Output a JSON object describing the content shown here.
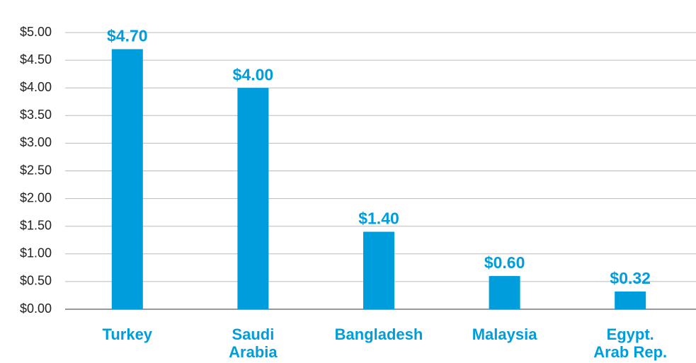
{
  "chart_data": {
    "type": "bar",
    "categories": [
      "Turkey",
      "Saudi\nArabia",
      "Bangladesh",
      "Malaysia",
      "Egypt.\nArab Rep."
    ],
    "values": [
      4.7,
      4.0,
      1.4,
      0.6,
      0.32
    ],
    "value_labels": [
      "$4.70",
      "$4.00",
      "$1.40",
      "$0.60",
      "$0.32"
    ],
    "color": "#009ddc",
    "ylim": [
      0,
      5
    ],
    "yticks": [
      {
        "value": 0,
        "label": "$0.00"
      },
      {
        "value": 0.5,
        "label": "$0.50"
      },
      {
        "value": 1,
        "label": "$1.00"
      },
      {
        "value": 1.5,
        "label": "$1.50"
      },
      {
        "value": 2,
        "label": "$2.00"
      },
      {
        "value": 2.5,
        "label": "$2.50"
      },
      {
        "value": 3,
        "label": "$3.00"
      },
      {
        "value": 3.5,
        "label": "$3.50"
      },
      {
        "value": 4,
        "label": "$4.00"
      },
      {
        "value": 4.5,
        "label": "$4.50"
      },
      {
        "value": 5,
        "label": "$5.00"
      }
    ],
    "grid": true
  }
}
